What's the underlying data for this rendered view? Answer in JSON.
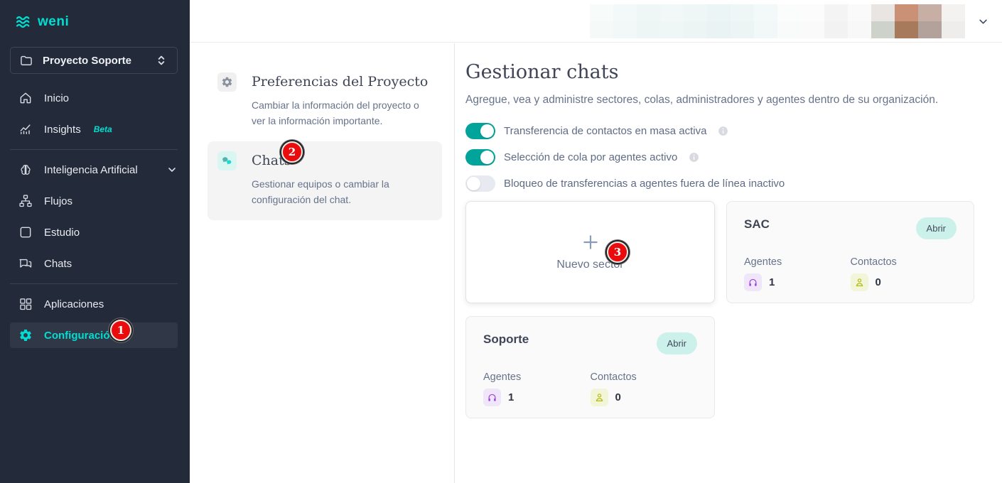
{
  "brand": {
    "name": "weni",
    "accent_color": "#00DED2"
  },
  "sidebar": {
    "project_selector": {
      "label": "Proyecto Soporte"
    },
    "items": [
      {
        "label": "Inicio"
      },
      {
        "label": "Insights",
        "badge": "Beta"
      },
      {
        "label": "Inteligencia Artificial"
      },
      {
        "label": "Flujos"
      },
      {
        "label": "Estudio"
      },
      {
        "label": "Chats"
      },
      {
        "label": "Aplicaciones"
      },
      {
        "label": "Configuración",
        "active": true
      }
    ]
  },
  "topbar": {
    "mosaic": [
      [
        "#f7fbfa",
        "#f3f9f8",
        "#eff7f6",
        "#f1f8f7",
        "#eef6f6",
        "#ecf5f5",
        "#eef6f6",
        "#f3f9f8",
        "#fbfdfc",
        "#fcfcfc",
        "#f4f4f4",
        "#fafafa",
        "#e9e5e2",
        "#cb9177",
        "#c7afa5",
        "#f4f2f1"
      ],
      [
        "#f5faf9",
        "#f1f8f7",
        "#edf5f5",
        "#eff6f6",
        "#ecf4f4",
        "#eaf3f3",
        "#ecf4f4",
        "#f1f8f7",
        "#f9fbfa",
        "#fafafa",
        "#f2f2f2",
        "#f8f8f8",
        "#cdd3ca",
        "#a87a5c",
        "#b2a29b",
        "#efedec"
      ]
    ]
  },
  "settings_menu": {
    "items": [
      {
        "title": "Preferencias del Proyecto",
        "description": "Cambiar la información del proyecto o ver la información importante.",
        "selected": false
      },
      {
        "title": "Chats",
        "description": "Gestionar equipos o cambiar la configuración del chat.",
        "selected": true
      }
    ]
  },
  "main": {
    "title": "Gestionar chats",
    "subtitle": "Agregue, vea y administre sectores, colas, administradores y agentes dentro de su organización.",
    "toggles": [
      {
        "label": "Transferencia de contactos en masa activa",
        "on": true,
        "has_info": true
      },
      {
        "label": "Selección de cola por agentes activo",
        "on": true,
        "has_info": true
      },
      {
        "label": "Bloqueo de transferencias a agentes fuera de línea inactivo",
        "on": false,
        "has_info": false
      }
    ],
    "new_sector_card": {
      "label": "Nuevo sector"
    },
    "sector_cards": [
      {
        "name": "SAC",
        "open_label": "Abrir",
        "agents_label": "Agentes",
        "agents_value": "1",
        "contacts_label": "Contactos",
        "contacts_value": "0"
      },
      {
        "name": "Soporte",
        "open_label": "Abrir",
        "agents_label": "Agentes",
        "agents_value": "1",
        "contacts_label": "Contactos",
        "contacts_value": "0"
      }
    ]
  },
  "annotations": [
    {
      "number": "1"
    },
    {
      "number": "2"
    },
    {
      "number": "3"
    }
  ],
  "colors": {
    "sidebar_bg": "#232a39",
    "accent_teal": "#00DED2",
    "toggle_on": "#00a49a",
    "annotation_red": "#ea0c0c",
    "open_pill_bg": "#ccf1ea",
    "agents_chip": "#f0e6fa",
    "contacts_chip": "#f3f5d8"
  }
}
